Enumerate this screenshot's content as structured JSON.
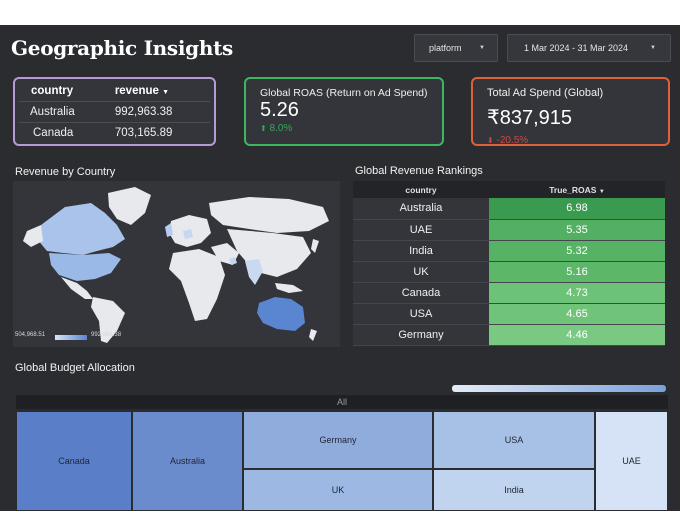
{
  "header": {
    "title": "Geographic Insights",
    "platform_filter": "platform",
    "date_range": "1 Mar 2024 - 31 Mar 2024"
  },
  "revenue_table": {
    "columns": [
      "country",
      "revenue"
    ],
    "rows": [
      {
        "country": "Australia",
        "revenue": "992,963.38"
      },
      {
        "country": "Canada",
        "revenue": "703,165.89"
      }
    ]
  },
  "kpi_roas": {
    "label": "Global ROAS (Return on Ad Spend)",
    "value": "5.26",
    "delta": "8.0%",
    "border_color": "#3eb55f",
    "delta_color": "#3aa65a"
  },
  "kpi_spend": {
    "label": "Total Ad Spend (Global)",
    "value": "₹837,915",
    "delta": "-20.5%",
    "border_color": "#e0603c",
    "delta_color": "#c94a44"
  },
  "revenue_table_border_color": "#b59ad6",
  "map": {
    "title": "Revenue by Country",
    "legend_min": "504,968.51",
    "legend_max": "992,963.38"
  },
  "rankings": {
    "title": "Global Revenue Rankings",
    "columns": [
      "country",
      "True_ROAS"
    ],
    "rows": [
      {
        "country": "Australia",
        "value": "6.98",
        "color": "#3a9a4f"
      },
      {
        "country": "UAE",
        "value": "5.35",
        "color": "#53b062"
      },
      {
        "country": "India",
        "value": "5.32",
        "color": "#56b264"
      },
      {
        "country": "UK",
        "value": "5.16",
        "color": "#5cb769"
      },
      {
        "country": "Canada",
        "value": "4.73",
        "color": "#6cc277"
      },
      {
        "country": "USA",
        "value": "4.65",
        "color": "#70c47a"
      },
      {
        "country": "Germany",
        "value": "4.46",
        "color": "#7ac983"
      }
    ]
  },
  "budget": {
    "title": "Global Budget Allocation",
    "root_label": "All",
    "tiles": [
      {
        "label": "Canada",
        "color": "#5a7fc8"
      },
      {
        "label": "Australia",
        "color": "#6a8ccc"
      },
      {
        "label": "Germany",
        "color": "#8facdd"
      },
      {
        "label": "USA",
        "color": "#a6c0e6"
      },
      {
        "label": "UK",
        "color": "#9db8e3"
      },
      {
        "label": "India",
        "color": "#c0d3ef"
      },
      {
        "label": "UAE",
        "color": "#d6e2f5"
      }
    ]
  },
  "icons": {
    "dropdown": "caret-down-icon",
    "sort": "sort-desc-icon",
    "delta_up": "arrow-up-icon",
    "delta_down": "arrow-down-icon"
  }
}
